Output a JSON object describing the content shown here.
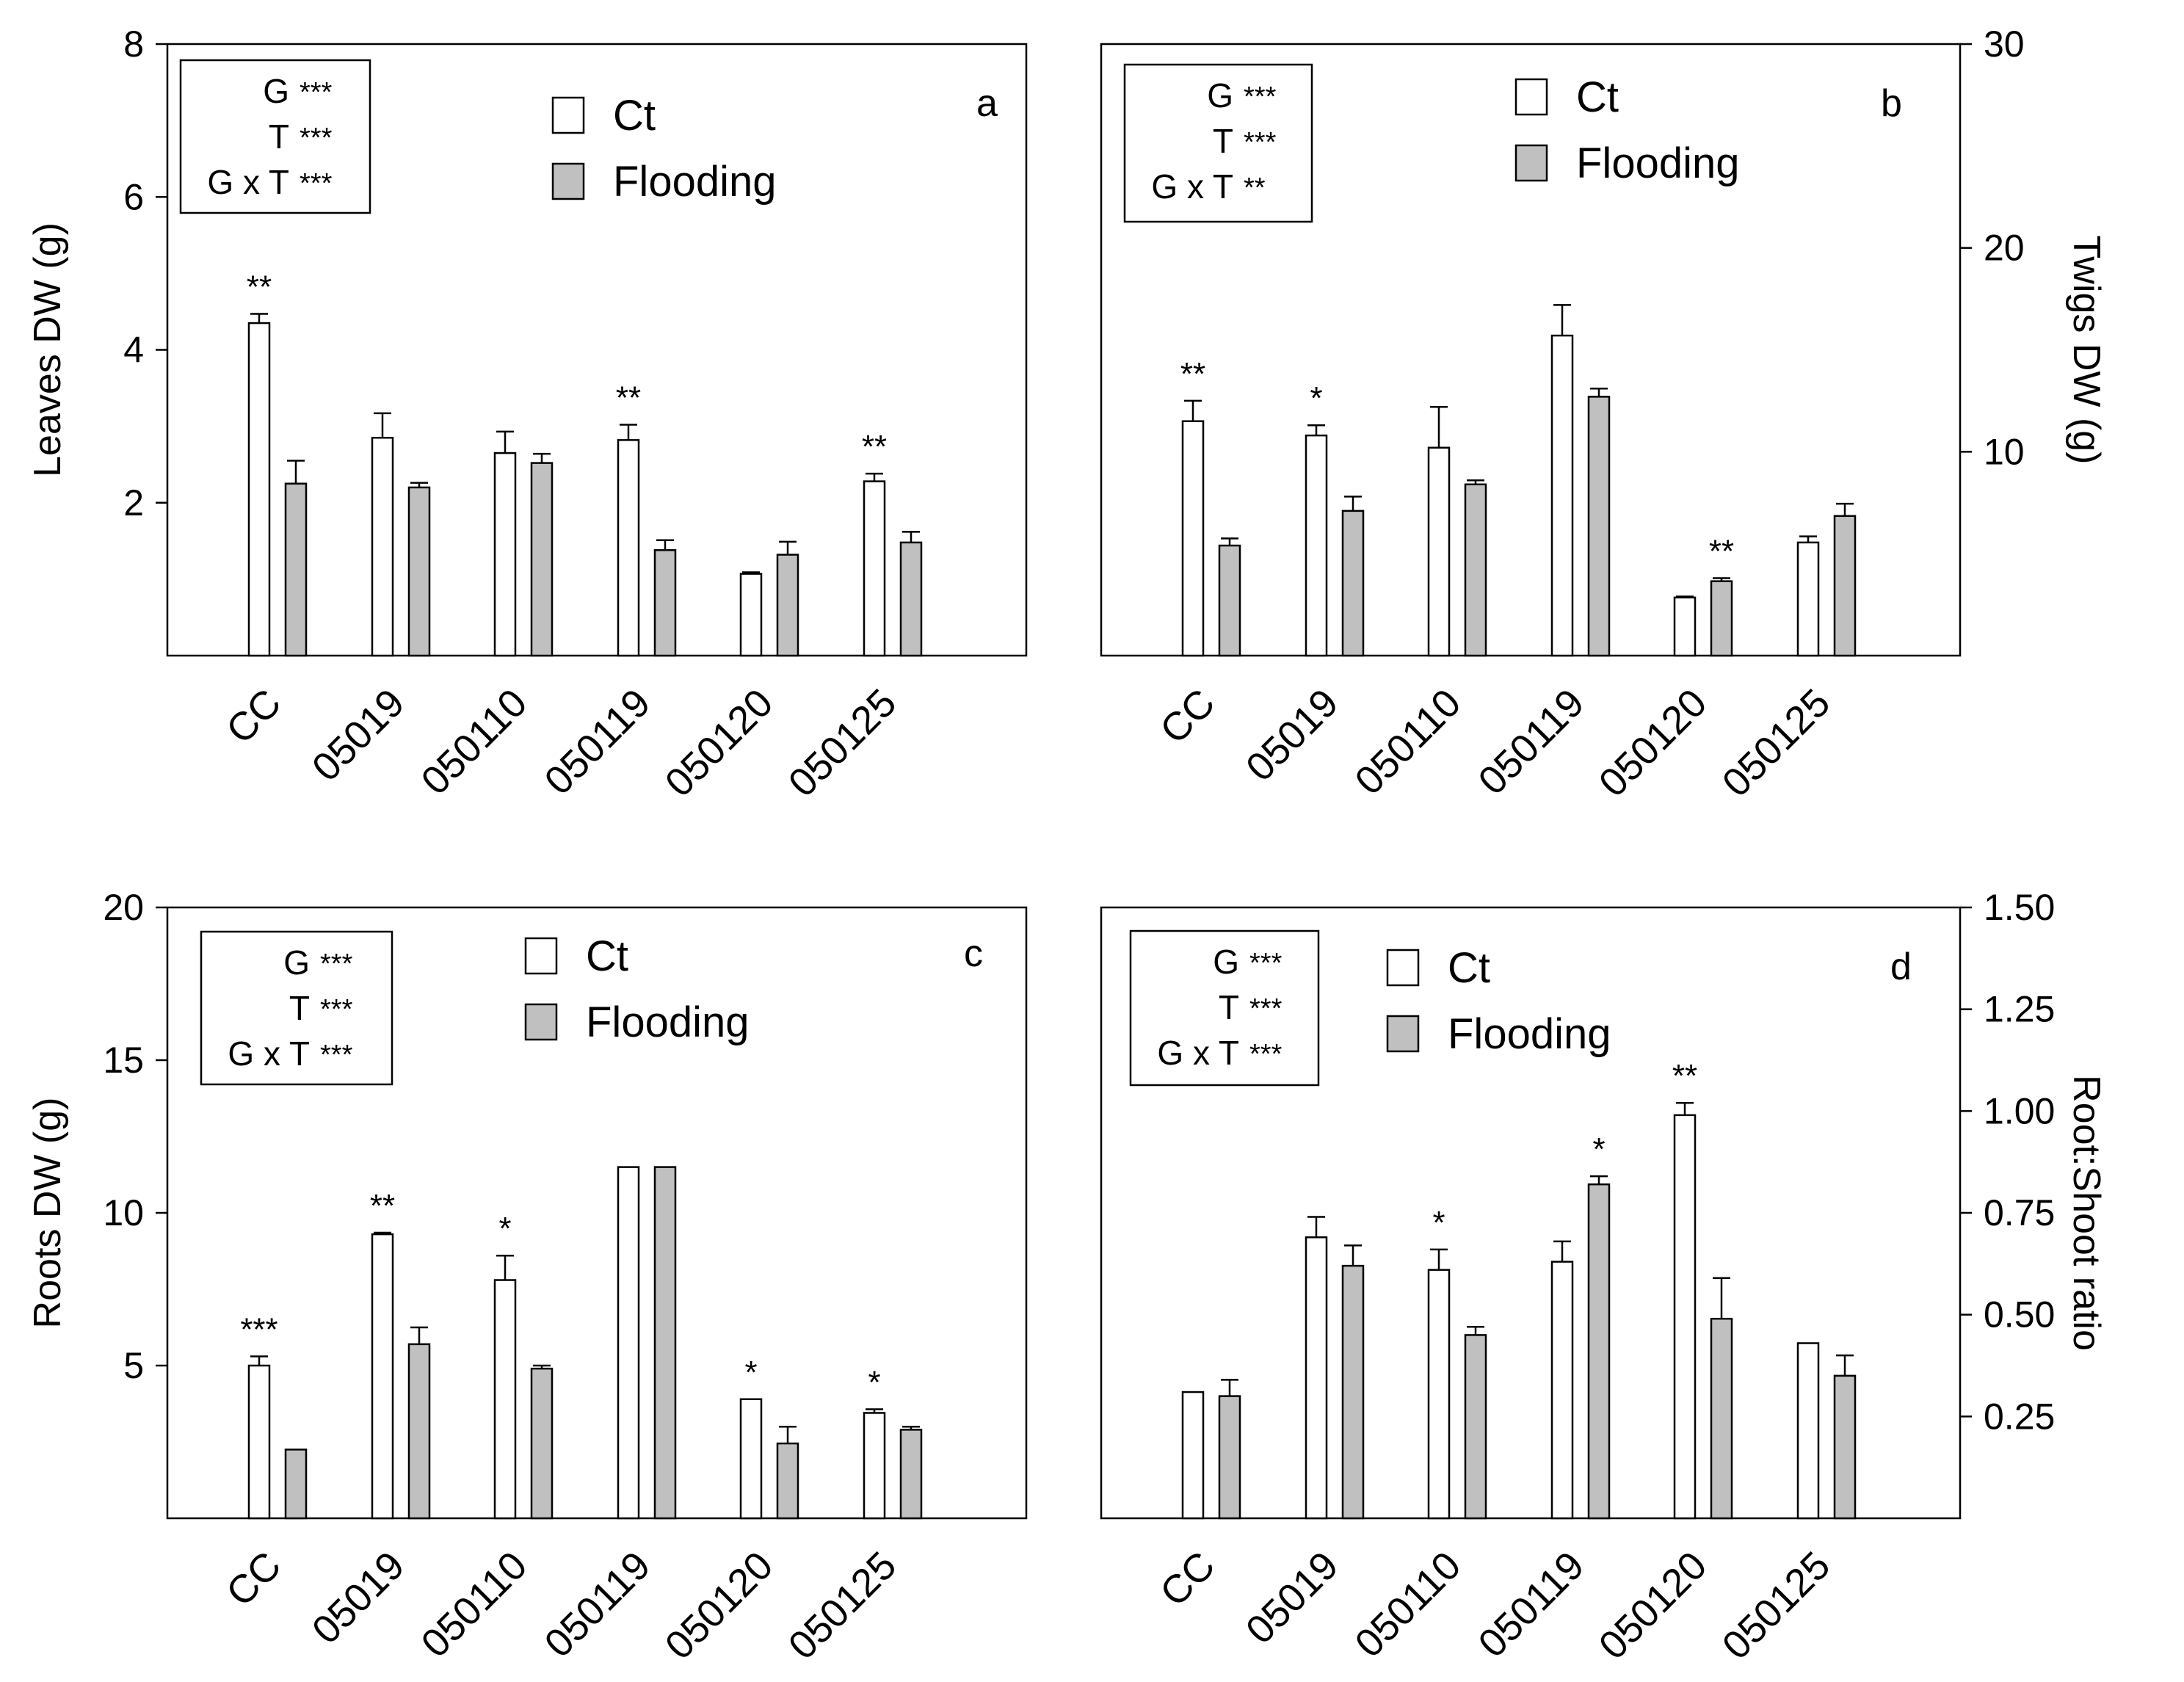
{
  "figure": {
    "categories": [
      "CC",
      "05019",
      "050110",
      "050119",
      "050120",
      "050125"
    ],
    "legend": [
      "Ct",
      "Flooding"
    ],
    "colors": {
      "ct": "#ffffff",
      "flooding": "#c0c0c0",
      "axis": "#000000"
    }
  },
  "chart_data": [
    {
      "type": "bar",
      "panel": "a",
      "ylabel": "Leaves DW (g)",
      "y_axis_side": "left",
      "ylim": [
        0,
        8
      ],
      "yticks": [
        "2",
        "4",
        "6",
        "8"
      ],
      "categories": [
        "CC",
        "05019",
        "050110",
        "050119",
        "050120",
        "050125"
      ],
      "series": [
        {
          "name": "Ct",
          "values": [
            4.35,
            2.85,
            2.65,
            2.82,
            1.07,
            2.28
          ],
          "errors": [
            0.12,
            0.32,
            0.28,
            0.2,
            0.02,
            0.1
          ]
        },
        {
          "name": "Flooding",
          "values": [
            2.25,
            2.2,
            2.52,
            1.38,
            1.32,
            1.48
          ],
          "errors": [
            0.3,
            0.06,
            0.12,
            0.13,
            0.17,
            0.14
          ]
        }
      ],
      "significance": [
        "**",
        "",
        "",
        "**",
        "",
        "**"
      ],
      "stats": [
        {
          "term": "G",
          "stars": "***"
        },
        {
          "term": "T",
          "stars": "***"
        },
        {
          "term": "G x T",
          "stars": "***"
        }
      ]
    },
    {
      "type": "bar",
      "panel": "b",
      "ylabel": "Twigs DW (g)",
      "y_axis_side": "right",
      "ylim": [
        0,
        30
      ],
      "yticks": [
        "10",
        "20",
        "30"
      ],
      "categories": [
        "CC",
        "05019",
        "050110",
        "050119",
        "050120",
        "050125"
      ],
      "series": [
        {
          "name": "Ct",
          "values": [
            11.5,
            10.8,
            10.2,
            15.7,
            2.85,
            5.55
          ],
          "errors": [
            1.0,
            0.5,
            2.0,
            1.5,
            0.05,
            0.3
          ]
        },
        {
          "name": "Flooding",
          "values": [
            5.4,
            7.1,
            8.4,
            12.7,
            3.65,
            6.85
          ],
          "errors": [
            0.35,
            0.7,
            0.2,
            0.4,
            0.15,
            0.6
          ]
        }
      ],
      "significance": [
        "**",
        "*",
        "",
        "",
        "**",
        ""
      ],
      "stats": [
        {
          "term": "G",
          "stars": "***"
        },
        {
          "term": "T",
          "stars": "***"
        },
        {
          "term": "G x T",
          "stars": "**"
        }
      ]
    },
    {
      "type": "bar",
      "panel": "c",
      "ylabel": "Roots DW (g)",
      "y_axis_side": "left",
      "ylim": [
        0,
        20
      ],
      "yticks": [
        "5",
        "10",
        "15",
        "20"
      ],
      "categories": [
        "CC",
        "05019",
        "050110",
        "050119",
        "050120",
        "050125"
      ],
      "series": [
        {
          "name": "Ct",
          "values": [
            5.0,
            9.3,
            7.8,
            11.5,
            3.9,
            3.45
          ],
          "errors": [
            0.3,
            0.05,
            0.8,
            0.0,
            0.0,
            0.12
          ]
        },
        {
          "name": "Flooding",
          "values": [
            2.25,
            5.7,
            4.9,
            11.5,
            2.45,
            2.9
          ],
          "errors": [
            0.0,
            0.55,
            0.1,
            0.0,
            0.55,
            0.1
          ]
        }
      ],
      "significance": [
        "***",
        "**",
        "*",
        "",
        "*",
        "*"
      ],
      "stats": [
        {
          "term": "G",
          "stars": "***"
        },
        {
          "term": "T",
          "stars": "***"
        },
        {
          "term": "G x T",
          "stars": "***"
        }
      ]
    },
    {
      "type": "bar",
      "panel": "d",
      "ylabel": "Root:Shoot ratio",
      "y_axis_side": "right",
      "ylim": [
        0,
        1.5
      ],
      "yticks": [
        "0.25",
        "0.50",
        "0.75",
        "1.00",
        "1.25",
        "1.50"
      ],
      "categories": [
        "CC",
        "05019",
        "050110",
        "050119",
        "050120",
        "050125"
      ],
      "series": [
        {
          "name": "Ct",
          "values": [
            0.31,
            0.69,
            0.61,
            0.63,
            0.99,
            0.43
          ],
          "errors": [
            0.0,
            0.05,
            0.05,
            0.05,
            0.03,
            0.0
          ]
        },
        {
          "name": "Flooding",
          "values": [
            0.3,
            0.62,
            0.45,
            0.82,
            0.49,
            0.35
          ],
          "errors": [
            0.04,
            0.05,
            0.02,
            0.02,
            0.1,
            0.05
          ]
        }
      ],
      "significance": [
        "",
        "",
        "*",
        "*",
        "**",
        ""
      ],
      "stats": [
        {
          "term": "G",
          "stars": "***"
        },
        {
          "term": "T",
          "stars": "***"
        },
        {
          "term": "G x T",
          "stars": "***"
        }
      ]
    }
  ]
}
